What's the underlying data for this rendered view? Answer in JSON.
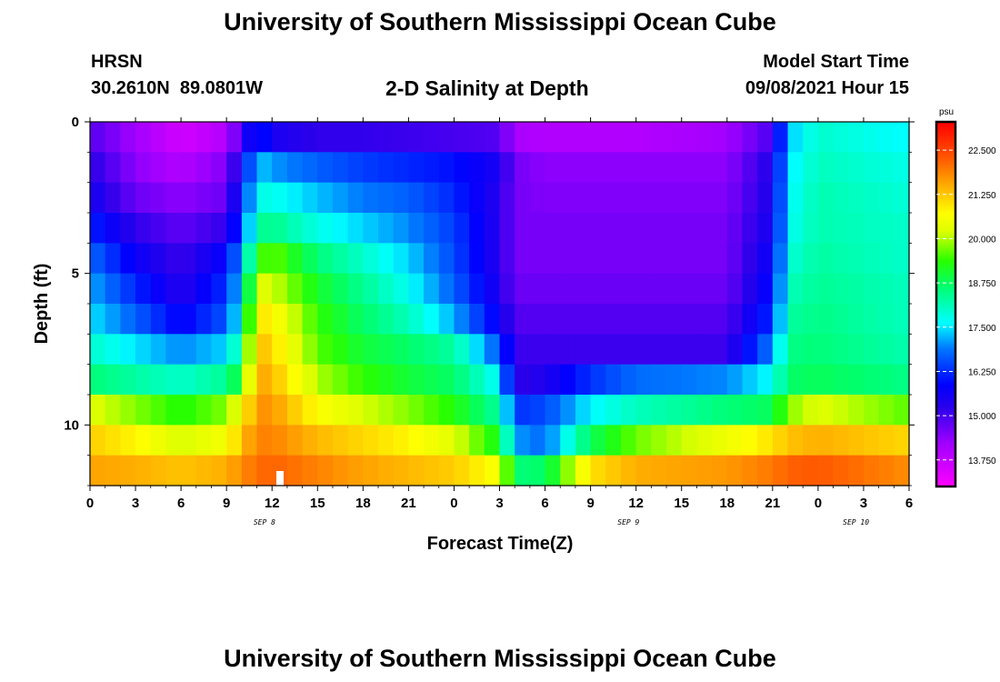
{
  "header": {
    "title_top": "University of Southern Mississippi Ocean Cube",
    "station": "HRSN",
    "coords": "30.2610N  89.0801W",
    "chart_title": "2-D Salinity at Depth",
    "model_label": "Model Start Time",
    "model_time": "09/08/2021 Hour 15",
    "title_bottom": "University of Southern Mississippi Ocean Cube"
  },
  "chart_data": {
    "type": "heatmap",
    "title": "2-D Salinity at Depth",
    "xlabel": "Forecast Time(Z)",
    "ylabel": "Depth (ft)",
    "x_ticks": [
      "0",
      "3",
      "6",
      "9",
      "12",
      "15",
      "18",
      "21",
      "0",
      "3",
      "6",
      "9",
      "12",
      "15",
      "18",
      "21",
      "0",
      "3",
      "6"
    ],
    "x_hours": [
      0,
      3,
      6,
      9,
      12,
      15,
      18,
      21,
      24,
      27,
      30,
      33,
      36,
      39,
      42,
      45,
      48,
      51,
      54
    ],
    "xlim": [
      0,
      54
    ],
    "date_labels": [
      {
        "text": "SEP 8",
        "hour": 11.5
      },
      {
        "text": "SEP 9",
        "hour": 35.5
      },
      {
        "text": "SEP 10",
        "hour": 50.5
      }
    ],
    "y_ticks": [
      "0",
      "5",
      "10"
    ],
    "y_tick_values": [
      0,
      5,
      10
    ],
    "ylim": [
      0,
      12
    ],
    "depth_layers": [
      0,
      1,
      2,
      3,
      4,
      5,
      6,
      7,
      8,
      9,
      10,
      11
    ],
    "colorbar": {
      "unit": "psu",
      "min": 13.0,
      "max": 23.3,
      "ticks": [
        "22.500",
        "21.250",
        "20.000",
        "18.750",
        "17.500",
        "16.250",
        "15.000",
        "13.750"
      ],
      "tick_values": [
        22.5,
        21.25,
        20.0,
        18.75,
        17.5,
        16.25,
        15.0,
        13.75
      ]
    },
    "profile_times": [
      0,
      3,
      6,
      9,
      10,
      11,
      12,
      15,
      18,
      21,
      24,
      27,
      28,
      30,
      33,
      36,
      42,
      45,
      46,
      48,
      54
    ],
    "values": [
      [
        14.9,
        14.2,
        13.6,
        14.0,
        15.0,
        16.3,
        15.5,
        15.2,
        15.2,
        15.1,
        15.0,
        14.9,
        14.1,
        14.0,
        14.0,
        14.0,
        14.2,
        15.0,
        17.3,
        18.0,
        17.6
      ],
      [
        15.3,
        14.4,
        14.0,
        14.5,
        15.7,
        17.4,
        17.1,
        16.7,
        16.4,
        16.2,
        16.0,
        15.5,
        14.6,
        14.4,
        14.4,
        14.4,
        14.4,
        15.4,
        17.5,
        18.1,
        17.8
      ],
      [
        15.6,
        14.7,
        14.4,
        14.7,
        16.2,
        17.8,
        17.8,
        17.3,
        16.9,
        16.7,
        16.2,
        15.3,
        14.6,
        14.5,
        14.5,
        14.5,
        14.5,
        15.5,
        17.6,
        18.2,
        17.9
      ],
      [
        16.2,
        15.2,
        14.8,
        15.2,
        16.5,
        18.3,
        18.5,
        17.8,
        17.4,
        17.0,
        16.4,
        15.3,
        14.6,
        14.6,
        14.6,
        14.6,
        14.6,
        15.6,
        17.7,
        18.2,
        18.0
      ],
      [
        16.8,
        15.7,
        15.1,
        15.9,
        17.2,
        19.3,
        19.7,
        18.6,
        18.0,
        17.4,
        16.5,
        15.3,
        14.6,
        14.6,
        14.6,
        14.6,
        14.6,
        15.8,
        17.9,
        18.3,
        18.0
      ],
      [
        17.2,
        16.2,
        15.3,
        16.3,
        17.6,
        20.3,
        20.2,
        19.1,
        18.4,
        17.7,
        16.7,
        15.4,
        14.7,
        14.7,
        14.7,
        14.7,
        14.7,
        16.0,
        18.1,
        18.4,
        18.1
      ],
      [
        17.5,
        16.7,
        15.8,
        16.6,
        17.9,
        21.0,
        20.8,
        19.4,
        18.7,
        18.1,
        17.2,
        15.7,
        14.9,
        14.9,
        14.9,
        14.9,
        14.9,
        16.3,
        18.3,
        18.5,
        18.1
      ],
      [
        18.0,
        17.5,
        17.0,
        17.4,
        18.5,
        21.4,
        21.1,
        19.6,
        19.0,
        18.7,
        18.3,
        16.6,
        15.1,
        15.1,
        15.1,
        15.1,
        15.1,
        17.0,
        18.5,
        18.6,
        18.2
      ],
      [
        18.6,
        18.3,
        18.0,
        18.4,
        19.2,
        21.6,
        21.4,
        20.0,
        19.4,
        19.0,
        18.7,
        17.6,
        15.2,
        15.4,
        16.3,
        16.8,
        17.0,
        17.7,
        18.7,
        18.8,
        18.5
      ],
      [
        20.3,
        19.8,
        19.3,
        19.8,
        20.6,
        21.8,
        21.7,
        20.7,
        20.2,
        19.8,
        19.3,
        18.3,
        16.3,
        16.5,
        17.6,
        18.1,
        18.6,
        18.8,
        19.8,
        20.3,
        19.6
      ],
      [
        21.2,
        20.8,
        20.2,
        20.6,
        21.3,
        21.9,
        21.9,
        21.4,
        21.1,
        20.8,
        20.3,
        19.1,
        17.1,
        16.8,
        18.8,
        19.7,
        20.5,
        21.0,
        21.3,
        21.5,
        21.1
      ],
      [
        21.6,
        21.5,
        21.3,
        21.5,
        21.8,
        22.1,
        22.2,
        21.9,
        21.6,
        21.4,
        21.2,
        20.6,
        18.6,
        18.7,
        21.0,
        21.5,
        21.7,
        22.0,
        22.2,
        22.3,
        21.8
      ]
    ]
  }
}
